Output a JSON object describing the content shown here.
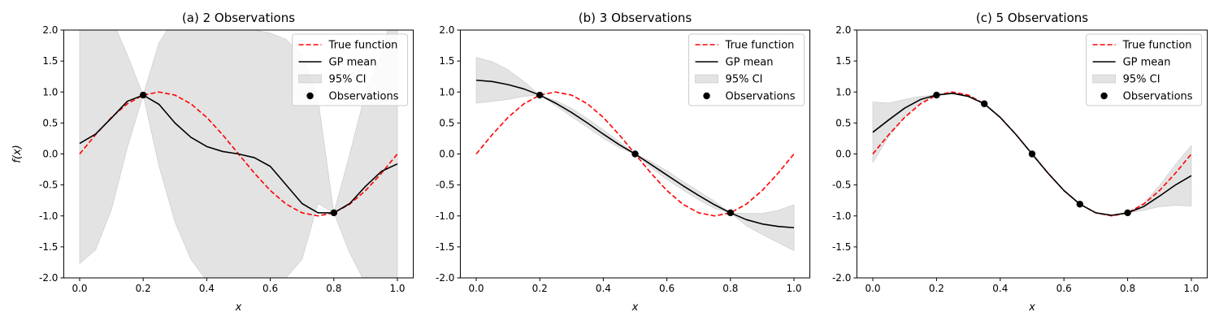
{
  "chart_data": [
    {
      "type": "line",
      "title": "(a) 2 Observations",
      "xlabel": "x",
      "ylabel": "f(x)",
      "xlim": [
        -0.05,
        1.05
      ],
      "ylim": [
        -2.0,
        2.0
      ],
      "xticks": [
        "0.0",
        "0.2",
        "0.4",
        "0.6",
        "0.8",
        "1.0"
      ],
      "yticks": [
        "-2.0",
        "-1.5",
        "-1.0",
        "-0.5",
        "0.0",
        "0.5",
        "1.0",
        "1.5",
        "2.0"
      ],
      "legend": {
        "position": "top-right",
        "entries": [
          "True function",
          "GP mean",
          "95% CI",
          "Observations"
        ]
      },
      "series": [
        {
          "name": "True function",
          "style": "dashed",
          "color": "#ff0000",
          "x": [
            0.0,
            0.05,
            0.1,
            0.15,
            0.2,
            0.25,
            0.3,
            0.35,
            0.4,
            0.45,
            0.5,
            0.55,
            0.6,
            0.65,
            0.7,
            0.75,
            0.8,
            0.85,
            0.9,
            0.95,
            1.0
          ],
          "y": [
            0.0,
            0.31,
            0.59,
            0.81,
            0.95,
            1.0,
            0.95,
            0.81,
            0.59,
            0.31,
            0.0,
            -0.31,
            -0.59,
            -0.81,
            -0.95,
            -1.0,
            -0.95,
            -0.81,
            -0.59,
            -0.31,
            0.0
          ]
        },
        {
          "name": "GP mean",
          "style": "solid",
          "color": "#000000",
          "x": [
            0.0,
            0.05,
            0.1,
            0.15,
            0.2,
            0.25,
            0.3,
            0.35,
            0.4,
            0.45,
            0.5,
            0.55,
            0.6,
            0.65,
            0.7,
            0.75,
            0.8,
            0.85,
            0.9,
            0.95,
            1.0
          ],
          "y": [
            0.17,
            0.32,
            0.58,
            0.85,
            0.95,
            0.8,
            0.5,
            0.27,
            0.12,
            0.04,
            0.0,
            -0.06,
            -0.2,
            -0.5,
            -0.8,
            -0.95,
            -0.95,
            -0.8,
            -0.52,
            -0.28,
            -0.16
          ]
        },
        {
          "name": "95% CI",
          "style": "band",
          "color": "#cccccc",
          "x": [
            0.0,
            0.05,
            0.1,
            0.15,
            0.2,
            0.25,
            0.3,
            0.35,
            0.4,
            0.45,
            0.5,
            0.55,
            0.6,
            0.65,
            0.7,
            0.75,
            0.8,
            0.85,
            0.9,
            0.95,
            1.0
          ],
          "lower": [
            -1.77,
            -1.55,
            -0.9,
            0.1,
            0.95,
            -0.2,
            -1.1,
            -1.7,
            -2.05,
            -2.2,
            -2.2,
            -2.2,
            -2.15,
            -2.0,
            -1.7,
            -0.8,
            -0.95,
            -1.6,
            -2.1,
            -2.6,
            -2.9
          ],
          "upper": [
            3.5,
            2.8,
            2.2,
            1.6,
            0.95,
            1.8,
            2.2,
            2.25,
            2.1,
            2.05,
            2.0,
            2.0,
            1.95,
            1.85,
            1.6,
            0.9,
            -0.95,
            0.0,
            1.0,
            1.6,
            2.6
          ]
        },
        {
          "name": "Observations",
          "style": "points",
          "color": "#000000",
          "x": [
            0.2,
            0.8
          ],
          "y": [
            0.95,
            -0.95
          ]
        }
      ]
    },
    {
      "type": "line",
      "title": "(b) 3 Observations",
      "xlabel": "x",
      "ylabel": "",
      "xlim": [
        -0.05,
        1.05
      ],
      "ylim": [
        -2.0,
        2.0
      ],
      "xticks": [
        "0.0",
        "0.2",
        "0.4",
        "0.6",
        "0.8",
        "1.0"
      ],
      "yticks": [
        "-2.0",
        "-1.5",
        "-1.0",
        "-0.5",
        "0.0",
        "0.5",
        "1.0",
        "1.5",
        "2.0"
      ],
      "legend": {
        "position": "top-right",
        "entries": [
          "True function",
          "GP mean",
          "95% CI",
          "Observations"
        ]
      },
      "series": [
        {
          "name": "True function",
          "style": "dashed",
          "color": "#ff0000",
          "x": [
            0.0,
            0.05,
            0.1,
            0.15,
            0.2,
            0.25,
            0.3,
            0.35,
            0.4,
            0.45,
            0.5,
            0.55,
            0.6,
            0.65,
            0.7,
            0.75,
            0.8,
            0.85,
            0.9,
            0.95,
            1.0
          ],
          "y": [
            0.0,
            0.31,
            0.59,
            0.81,
            0.95,
            1.0,
            0.95,
            0.81,
            0.59,
            0.31,
            0.0,
            -0.31,
            -0.59,
            -0.81,
            -0.95,
            -1.0,
            -0.95,
            -0.81,
            -0.59,
            -0.31,
            0.0
          ]
        },
        {
          "name": "GP mean",
          "style": "solid",
          "color": "#000000",
          "x": [
            0.0,
            0.05,
            0.1,
            0.15,
            0.2,
            0.25,
            0.3,
            0.35,
            0.4,
            0.45,
            0.5,
            0.55,
            0.6,
            0.65,
            0.7,
            0.75,
            0.8,
            0.85,
            0.9,
            0.95,
            1.0
          ],
          "y": [
            1.19,
            1.17,
            1.12,
            1.05,
            0.95,
            0.82,
            0.67,
            0.5,
            0.32,
            0.15,
            0.0,
            -0.17,
            -0.34,
            -0.51,
            -0.67,
            -0.82,
            -0.95,
            -1.06,
            -1.13,
            -1.17,
            -1.19
          ]
        },
        {
          "name": "95% CI",
          "style": "band",
          "color": "#cccccc",
          "x": [
            0.0,
            0.05,
            0.1,
            0.15,
            0.2,
            0.25,
            0.3,
            0.35,
            0.4,
            0.45,
            0.5,
            0.55,
            0.6,
            0.65,
            0.7,
            0.75,
            0.8,
            0.85,
            0.9,
            0.95,
            1.0
          ],
          "lower": [
            0.82,
            0.85,
            0.88,
            0.93,
            0.95,
            0.78,
            0.6,
            0.43,
            0.25,
            0.1,
            0.0,
            -0.22,
            -0.41,
            -0.58,
            -0.74,
            -0.88,
            -0.95,
            -1.16,
            -1.3,
            -1.43,
            -1.56
          ]
        },
        {
          "name": "Observations",
          "style": "points",
          "color": "#000000",
          "x": [
            0.2,
            0.5,
            0.8
          ],
          "y": [
            0.95,
            0.0,
            -0.95
          ]
        }
      ]
    },
    {
      "type": "line",
      "title": "(c) 5 Observations",
      "xlabel": "x",
      "ylabel": "",
      "xlim": [
        -0.05,
        1.05
      ],
      "ylim": [
        -2.0,
        2.0
      ],
      "xticks": [
        "0.0",
        "0.2",
        "0.4",
        "0.6",
        "0.8",
        "1.0"
      ],
      "yticks": [
        "-2.0",
        "-1.5",
        "-1.0",
        "-0.5",
        "0.0",
        "0.5",
        "1.0",
        "1.5",
        "2.0"
      ],
      "legend": {
        "position": "top-right",
        "entries": [
          "True function",
          "GP mean",
          "95% CI",
          "Observations"
        ]
      },
      "series": [
        {
          "name": "True function",
          "style": "dashed",
          "color": "#ff0000",
          "x": [
            0.0,
            0.05,
            0.1,
            0.15,
            0.2,
            0.25,
            0.3,
            0.35,
            0.4,
            0.45,
            0.5,
            0.55,
            0.6,
            0.65,
            0.7,
            0.75,
            0.8,
            0.85,
            0.9,
            0.95,
            1.0
          ],
          "y": [
            0.0,
            0.31,
            0.59,
            0.81,
            0.95,
            1.0,
            0.95,
            0.81,
            0.59,
            0.31,
            0.0,
            -0.31,
            -0.59,
            -0.81,
            -0.95,
            -1.0,
            -0.95,
            -0.81,
            -0.59,
            -0.31,
            0.0
          ]
        },
        {
          "name": "GP mean",
          "style": "solid",
          "color": "#000000",
          "x": [
            0.0,
            0.05,
            0.1,
            0.15,
            0.2,
            0.25,
            0.3,
            0.35,
            0.4,
            0.45,
            0.5,
            0.55,
            0.6,
            0.65,
            0.7,
            0.75,
            0.8,
            0.85,
            0.9,
            0.95,
            1.0
          ],
          "y": [
            0.35,
            0.55,
            0.74,
            0.88,
            0.95,
            0.98,
            0.93,
            0.81,
            0.59,
            0.31,
            0.0,
            -0.31,
            -0.59,
            -0.81,
            -0.95,
            -0.99,
            -0.95,
            -0.85,
            -0.68,
            -0.5,
            -0.35
          ]
        },
        {
          "name": "95% CI",
          "style": "band",
          "color": "#cccccc",
          "x": [
            0.0,
            0.05,
            0.1,
            0.15,
            0.2,
            0.25,
            0.3,
            0.35,
            0.4,
            0.45,
            0.5,
            0.55,
            0.6,
            0.65,
            0.7,
            0.75,
            0.8,
            0.85,
            0.9,
            0.95,
            1.0
          ],
          "lower": [
            -0.14,
            0.28,
            0.6,
            0.83,
            0.95,
            0.97,
            0.92,
            0.81,
            0.58,
            0.3,
            0.0,
            -0.32,
            -0.6,
            -0.81,
            -0.95,
            -1.0,
            -0.95,
            -0.91,
            -0.85,
            -0.83,
            -0.84
          ],
          "upper": [
            0.84,
            0.82,
            0.88,
            0.93,
            0.95,
            0.99,
            0.94,
            0.81,
            0.6,
            0.32,
            0.0,
            -0.3,
            -0.58,
            -0.81,
            -0.95,
            -0.98,
            -0.95,
            -0.79,
            -0.51,
            -0.17,
            0.14
          ]
        },
        {
          "name": "Observations",
          "style": "points",
          "color": "#000000",
          "x": [
            0.2,
            0.35,
            0.5,
            0.65,
            0.8
          ],
          "y": [
            0.95,
            0.81,
            0.0,
            -0.81,
            -0.95
          ]
        }
      ]
    }
  ]
}
